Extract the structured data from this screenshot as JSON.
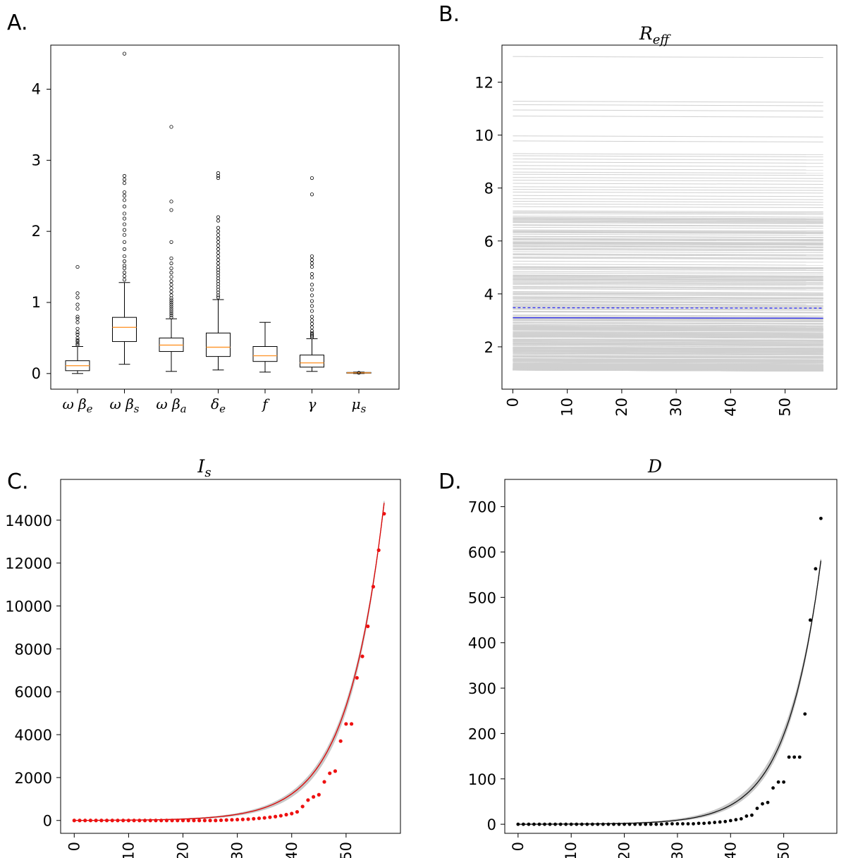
{
  "chart_data": [
    {
      "panel": "A.",
      "type": "box",
      "title": "",
      "xlabel": "",
      "ylabel": "",
      "ylim": [
        -0.22,
        4.62
      ],
      "yticks": [
        "0",
        "1",
        "2",
        "3",
        "4"
      ],
      "categories": [
        "ω β",
        "ω β",
        "ω β",
        "δ",
        "f",
        "γ",
        "μ"
      ],
      "category_subscripts": [
        "e",
        "s",
        "a",
        "e",
        "",
        "",
        "s"
      ],
      "boxes": [
        {
          "whisker_low": 0.0,
          "q1": 0.04,
          "median": 0.11,
          "q3": 0.18,
          "whisker_high": 0.38,
          "outliers": [
            0.4,
            0.42,
            0.45,
            0.47,
            0.5,
            0.55,
            0.58,
            0.63,
            0.72,
            0.77,
            0.8,
            0.91,
            0.97,
            1.07,
            1.13,
            1.5
          ]
        },
        {
          "whisker_low": 0.13,
          "q1": 0.45,
          "median": 0.65,
          "q3": 0.79,
          "whisker_high": 1.28,
          "outliers": [
            1.32,
            1.37,
            1.42,
            1.48,
            1.52,
            1.58,
            1.65,
            1.75,
            1.85,
            1.95,
            2.02,
            2.1,
            2.18,
            2.25,
            2.35,
            2.44,
            2.5,
            2.55,
            2.68,
            2.73,
            2.78,
            4.5
          ]
        },
        {
          "whisker_low": 0.03,
          "q1": 0.31,
          "median": 0.4,
          "q3": 0.5,
          "whisker_high": 0.77,
          "outliers": [
            0.79,
            0.82,
            0.85,
            0.88,
            0.91,
            0.94,
            0.97,
            1.0,
            1.03,
            1.06,
            1.1,
            1.15,
            1.2,
            1.25,
            1.3,
            1.36,
            1.42,
            1.48,
            1.55,
            1.62,
            1.85,
            2.3,
            2.42,
            3.47
          ]
        },
        {
          "whisker_low": 0.05,
          "q1": 0.24,
          "median": 0.37,
          "q3": 0.57,
          "whisker_high": 1.04,
          "outliers": [
            1.07,
            1.1,
            1.14,
            1.18,
            1.22,
            1.26,
            1.3,
            1.34,
            1.38,
            1.42,
            1.46,
            1.5,
            1.55,
            1.6,
            1.65,
            1.7,
            1.75,
            1.8,
            1.85,
            1.9,
            1.95,
            2.0,
            2.05,
            2.15,
            2.2,
            2.75,
            2.78,
            2.82
          ]
        },
        {
          "whisker_low": 0.02,
          "q1": 0.17,
          "median": 0.25,
          "q3": 0.38,
          "whisker_high": 0.72,
          "outliers": []
        },
        {
          "whisker_low": 0.03,
          "q1": 0.09,
          "median": 0.15,
          "q3": 0.26,
          "whisker_high": 0.49,
          "outliers": [
            0.51,
            0.53,
            0.55,
            0.57,
            0.6,
            0.65,
            0.7,
            0.75,
            0.8,
            0.88,
            0.95,
            1.02,
            1.1,
            1.18,
            1.25,
            1.35,
            1.4,
            1.5,
            1.55,
            1.6,
            1.65,
            2.52,
            2.75
          ]
        },
        {
          "whisker_low": 0.0,
          "q1": 0.005,
          "median": 0.01,
          "q3": 0.015,
          "whisker_high": 0.02,
          "outliers": [
            0.01
          ]
        }
      ],
      "colors": {
        "box": "#000000",
        "median": "#ff9933",
        "outlier": "#000000"
      }
    },
    {
      "panel": "B.",
      "type": "line",
      "title": "R",
      "title_sub": "eff",
      "xlabel": "",
      "ylabel": "",
      "xlim": [
        -2,
        59.5
      ],
      "ylim": [
        0.4,
        13.4
      ],
      "xticks": [
        "0",
        "10",
        "20",
        "30",
        "40",
        "50"
      ],
      "yticks": [
        "2",
        "4",
        "6",
        "8",
        "10",
        "12"
      ],
      "x_end": 57,
      "ensemble": {
        "count": 340,
        "min": 1.12,
        "max": 12.97,
        "color": "#d0d0d0",
        "upper_values": [
          12.97,
          11.28,
          11.15,
          10.95,
          10.72,
          9.97,
          9.78,
          9.3,
          9.22,
          9.1,
          8.98,
          8.85,
          8.72,
          8.6,
          8.52,
          8.4,
          8.3,
          8.18,
          8.05,
          7.95,
          7.85,
          7.72,
          7.6,
          7.5,
          7.4,
          7.3
        ]
      },
      "series": [
        {
          "values": [
            3.1,
            3.08
          ],
          "style": "solid",
          "color": "#3333ee"
        },
        {
          "values": [
            3.48,
            3.46
          ],
          "style": "dashed",
          "color": "#3333ee"
        }
      ]
    },
    {
      "panel": "C.",
      "type": "line+scatter",
      "title": "I",
      "title_sub": "s",
      "xlabel": "",
      "ylabel": "",
      "xlim": [
        -2.5,
        60
      ],
      "ylim": [
        -600,
        15900
      ],
      "xticks": [
        "0",
        "10",
        "20",
        "30",
        "40",
        "50"
      ],
      "yticks": [
        "0",
        "2000",
        "4000",
        "6000",
        "8000",
        "10000",
        "12000",
        "14000"
      ],
      "model": {
        "a": 3.6,
        "b": 0.146,
        "x_end": 57,
        "color": "#dd0000"
      },
      "ensemble": {
        "count": 40,
        "b_low": 0.141,
        "b_high": 0.153,
        "color": "#c8c8c8"
      },
      "observed": {
        "color": "#ee1111",
        "x": [
          0,
          1,
          2,
          3,
          4,
          5,
          6,
          7,
          8,
          9,
          10,
          11,
          12,
          13,
          14,
          15,
          16,
          17,
          18,
          19,
          20,
          21,
          22,
          23,
          24,
          25,
          26,
          27,
          28,
          29,
          30,
          31,
          32,
          33,
          34,
          35,
          36,
          37,
          38,
          39,
          40,
          41,
          42,
          43,
          44,
          45,
          46,
          47,
          48,
          49,
          50,
          51,
          52,
          53,
          54,
          55,
          56,
          57
        ],
        "y": [
          0,
          0,
          0,
          0,
          0,
          0,
          0,
          0,
          0,
          0,
          0,
          0,
          0,
          0,
          0,
          0,
          0,
          0,
          0,
          0,
          0,
          0,
          0,
          0,
          0,
          0,
          0,
          10,
          20,
          30,
          40,
          50,
          60,
          80,
          100,
          120,
          150,
          180,
          220,
          270,
          320,
          400,
          650,
          950,
          1100,
          1200,
          1800,
          2200,
          2300,
          3700,
          4500,
          4500,
          6650,
          7650,
          9050,
          10900,
          12600,
          14300
        ]
      }
    },
    {
      "panel": "D.",
      "type": "line+scatter",
      "title": "D",
      "xlabel": "",
      "ylabel": "",
      "xlim": [
        -2.5,
        60
      ],
      "ylim": [
        -20,
        760
      ],
      "xticks": [
        "0",
        "10",
        "20",
        "30",
        "40",
        "50"
      ],
      "yticks": [
        "0",
        "100",
        "200",
        "300",
        "400",
        "500",
        "600",
        "700"
      ],
      "model": {
        "a": 0.087,
        "b": 0.1545,
        "x_end": 57,
        "color": "#111111"
      },
      "ensemble": {
        "count": 40,
        "b_low": 0.146,
        "b_high": 0.162,
        "color": "#c8c8c8"
      },
      "observed": {
        "color": "#000000",
        "x": [
          0,
          1,
          2,
          3,
          4,
          5,
          6,
          7,
          8,
          9,
          10,
          11,
          12,
          13,
          14,
          15,
          16,
          17,
          18,
          19,
          20,
          21,
          22,
          23,
          24,
          25,
          26,
          27,
          28,
          29,
          30,
          31,
          32,
          33,
          34,
          35,
          36,
          37,
          38,
          39,
          40,
          41,
          42,
          43,
          44,
          45,
          46,
          47,
          48,
          49,
          50,
          51,
          52,
          53,
          54,
          55,
          56,
          57
        ],
        "y": [
          0,
          0,
          0,
          0,
          0,
          0,
          0,
          0,
          0,
          0,
          0,
          0,
          0,
          0,
          0,
          0,
          0,
          0,
          0,
          0,
          0,
          0,
          0,
          0,
          0,
          0,
          0,
          0,
          1,
          1,
          1,
          1,
          1,
          1,
          2,
          2,
          3,
          4,
          5,
          6,
          8,
          10,
          12,
          18,
          20,
          35,
          45,
          48,
          80,
          93,
          93,
          148,
          148,
          148,
          243,
          450,
          563,
          674
        ]
      }
    }
  ]
}
